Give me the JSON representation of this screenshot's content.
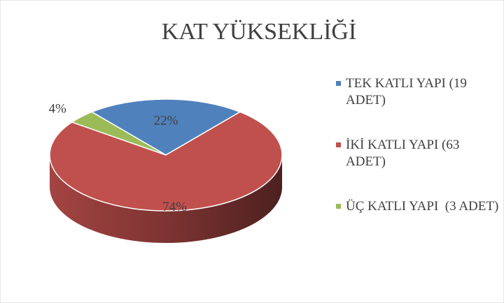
{
  "chart_data": {
    "type": "pie",
    "title": "KAT YÜKSEKLİĞİ",
    "categories": [
      "TEK KATLI YAPI (19 ADET)",
      "İKİ KATLI YAPI (63 ADET)",
      "ÜÇ KATLI YAPI  (3 ADET)"
    ],
    "values": [
      22,
      74,
      4
    ],
    "value_labels": [
      "22%",
      "74%",
      "4%"
    ],
    "colors": [
      "#4f81bd",
      "#c0504d",
      "#9bbb59"
    ],
    "legend": "right"
  }
}
